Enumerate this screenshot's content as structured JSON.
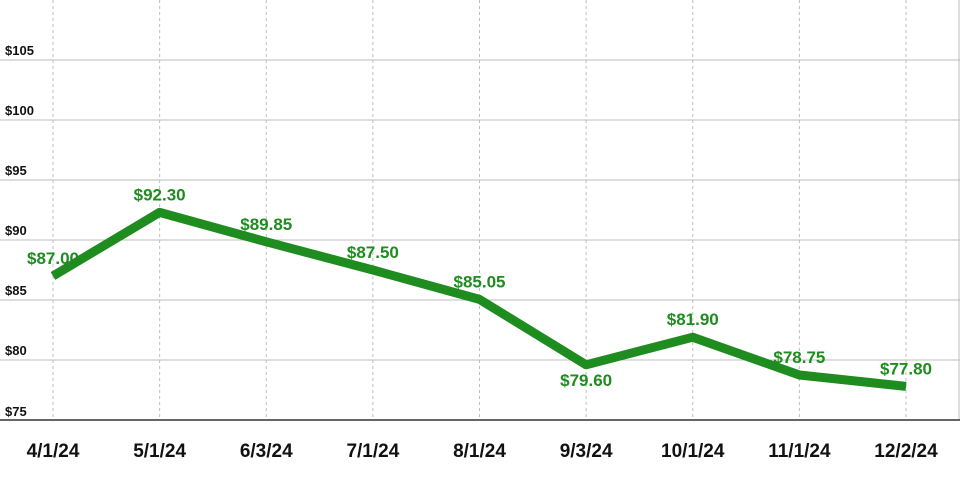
{
  "colors": {
    "series": "#1e8c1e",
    "label": "#1e8c1e",
    "grid": "#bdbdbd",
    "axis": "#333333"
  },
  "chart_data": {
    "type": "line",
    "title": "",
    "xlabel": "",
    "ylabel": "",
    "x": [
      "4/1/24",
      "5/1/24",
      "6/3/24",
      "7/1/24",
      "8/1/24",
      "9/3/24",
      "10/1/24",
      "11/1/24",
      "12/2/24"
    ],
    "series": [
      {
        "values": [
          87.0,
          92.3,
          89.85,
          87.5,
          85.05,
          79.6,
          81.9,
          78.75,
          77.8
        ],
        "labels": [
          "$87.00",
          "$92.30",
          "$89.85",
          "$87.50",
          "$85.05",
          "$79.60",
          "$81.90",
          "$78.75",
          "$77.80"
        ]
      }
    ],
    "ylim": [
      75,
      105
    ],
    "yticks": [
      75,
      80,
      85,
      90,
      95,
      100,
      105
    ],
    "ytick_labels": [
      "$75",
      "$80",
      "$85",
      "$90",
      "$95",
      "$100",
      "$105"
    ],
    "grid": true,
    "legend": "none"
  }
}
